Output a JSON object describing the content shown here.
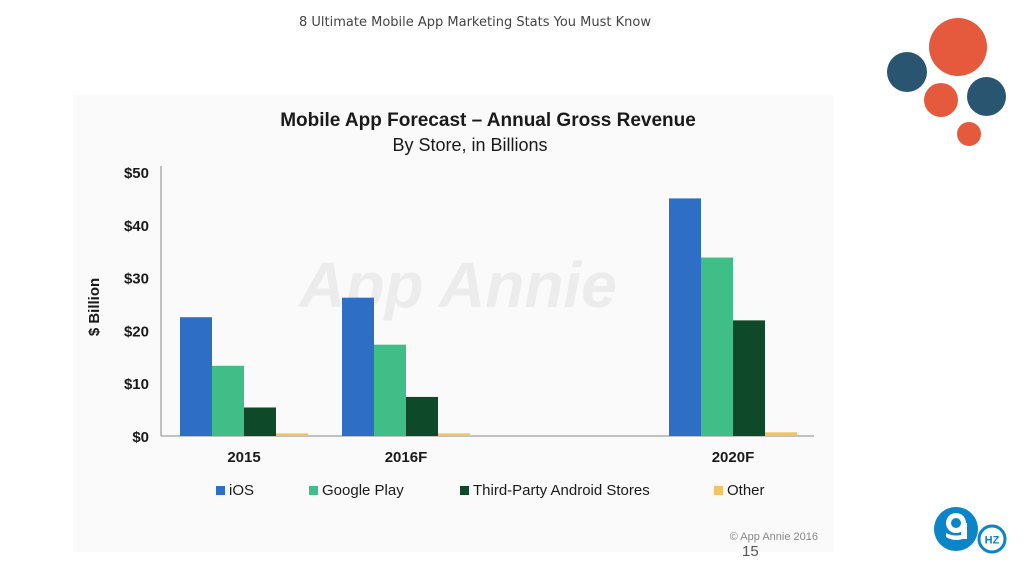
{
  "slide": {
    "header": "8 Ultimate Mobile App Marketing Stats You Must Know",
    "page_number": "15"
  },
  "chart_data": {
    "type": "bar",
    "title": "Mobile App Forecast – Annual Gross Revenue",
    "subtitle": "By Store, in Billions",
    "ylabel": "$ Billion",
    "xlabel": "",
    "categories": [
      "2015",
      "2016F",
      "2020F"
    ],
    "ylim": [
      0,
      50
    ],
    "yticks": [
      "$0",
      "$10",
      "$20",
      "$30",
      "$40",
      "$50"
    ],
    "series": [
      {
        "name": "iOS",
        "color": "#2e6fc5",
        "values": [
          22.5,
          26.2,
          45.0
        ]
      },
      {
        "name": "Google Play",
        "color": "#3fbf87",
        "values": [
          13.3,
          17.3,
          33.8
        ]
      },
      {
        "name": "Third-Party Android Stores",
        "color": "#0e4a2a",
        "values": [
          5.4,
          7.4,
          21.9
        ]
      },
      {
        "name": "Other",
        "color": "#f2c265",
        "values": [
          0.5,
          0.5,
          0.7
        ]
      }
    ],
    "legend_position": "bottom",
    "watermark": "App Annie",
    "source": "© App Annie 2016"
  },
  "decor": {
    "dark_circle_color": "#2a5570",
    "orange_circle_color": "#e55a3c"
  },
  "logo": {
    "text": "HZ",
    "icon": "9hz-logo-icon",
    "color": "#0b85c7"
  }
}
